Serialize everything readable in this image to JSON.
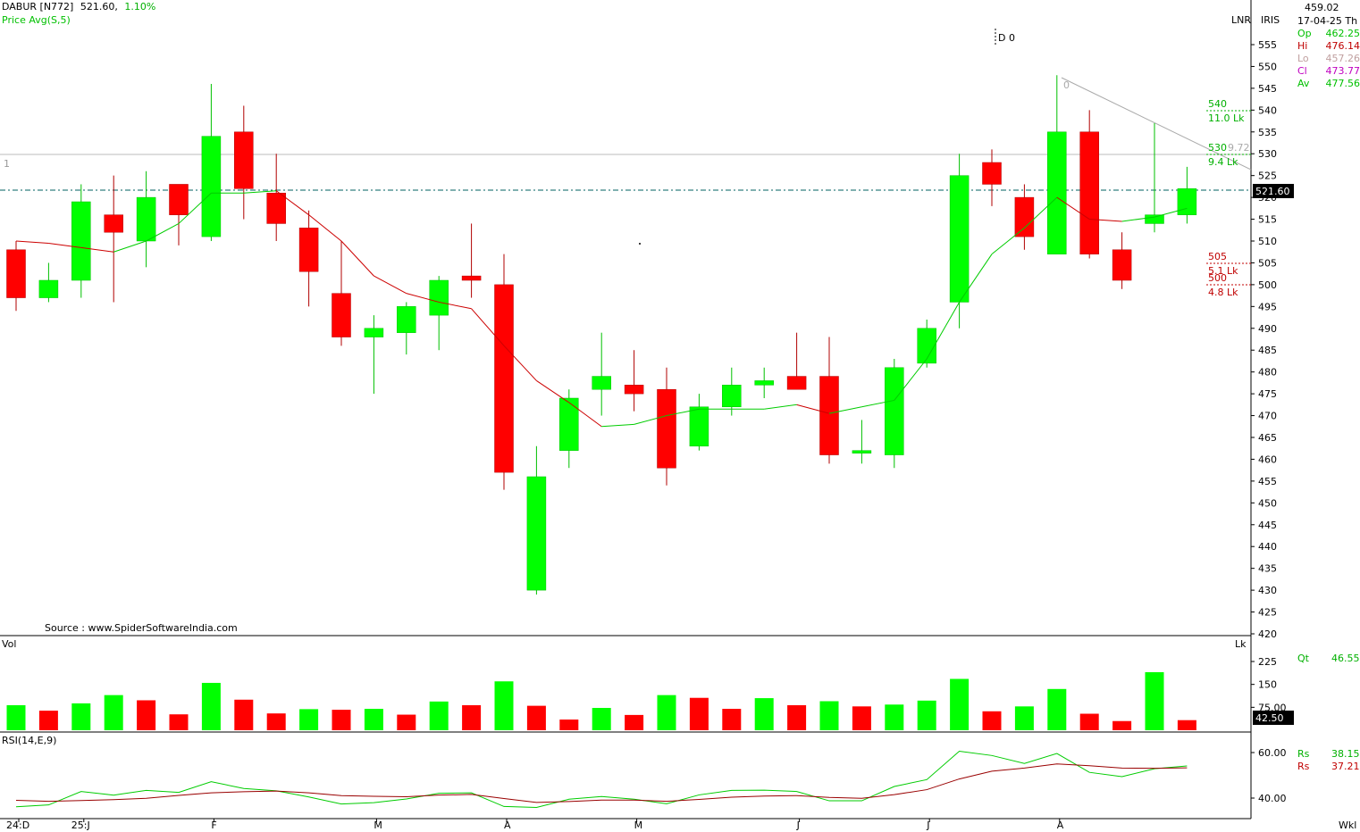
{
  "header": {
    "symbol": "DABUR [N772]",
    "last": "521.60,",
    "change": "1.10%",
    "indicator": "Price  Avg(S,5)"
  },
  "top_right": {
    "lnr": "LNR",
    "iris": "IRIS",
    "value": "459.02",
    "date": "17-04-25 Th",
    "ohlc": [
      {
        "label": "Op",
        "value": "462.25",
        "color": "#00c000"
      },
      {
        "label": "Hi",
        "value": "476.14",
        "color": "#c00000"
      },
      {
        "label": "Lo",
        "value": "457.26",
        "color": "#c0a0a0"
      },
      {
        "label": "Cl",
        "value": "473.77",
        "color": "#c000c0"
      },
      {
        "label": "Av",
        "value": "477.56",
        "color": "#00c000"
      }
    ]
  },
  "annotations": {
    "d0": "D 0",
    "level_1": "1",
    "trend_zero": "0",
    "trend_end": "9.72",
    "r540": "540",
    "r540_vol": "11.0 Lk",
    "r530": "530",
    "r530_vol": "9.4 Lk",
    "s505": "505",
    "s505_vol": "5.1 Lk",
    "s500": "500",
    "s500_vol": "4.8 Lk",
    "source": "Source : www.SpiderSoftwareIndia.com",
    "last_price_tag": "521.60"
  },
  "volume_panel": {
    "label": "Vol",
    "unit": "Lk",
    "qt_label": "Qt",
    "qt_value": "46.55",
    "last_tag": "42.50"
  },
  "rsi_panel": {
    "label": "RSI(14,E,9)",
    "rs1_label": "Rs",
    "rs1_value": "38.15",
    "rs2_label": "Rs",
    "rs2_value": "37.21"
  },
  "footer": {
    "period": "Wkl"
  },
  "colors": {
    "up": "#00ff00",
    "down": "#ff0000",
    "avg_up": "#00cc00",
    "avg_down": "#cc0000"
  },
  "chart_data": {
    "type": "candlestick",
    "price_ylim": [
      420,
      557
    ],
    "price_ticks": [
      420,
      425,
      430,
      435,
      440,
      445,
      450,
      455,
      460,
      465,
      470,
      475,
      480,
      485,
      490,
      495,
      500,
      505,
      510,
      515,
      520,
      525,
      530,
      535,
      540,
      545,
      550,
      555
    ],
    "volume_ylim": [
      0,
      280
    ],
    "volume_ticks": [
      {
        "v": 75,
        "label": "75.00"
      },
      {
        "v": 150,
        "label": "150"
      },
      {
        "v": 225,
        "label": "225"
      }
    ],
    "rsi_ylim": [
      30,
      70
    ],
    "rsi_ticks": [
      {
        "v": 40,
        "label": "40.00"
      },
      {
        "v": 60,
        "label": "60.00"
      }
    ],
    "x_labels": [
      {
        "i": 0,
        "label": "24:D"
      },
      {
        "i": 2,
        "label": "25:J"
      },
      {
        "i": 6,
        "label": "F"
      },
      {
        "i": 11,
        "label": "M"
      },
      {
        "i": 15,
        "label": "A"
      },
      {
        "i": 19,
        "label": "M"
      },
      {
        "i": 24,
        "label": "J"
      },
      {
        "i": 28,
        "label": "J"
      },
      {
        "i": 32,
        "label": "A"
      }
    ],
    "candles": [
      {
        "o": 508,
        "h": 510,
        "l": 494,
        "c": 497
      },
      {
        "o": 497,
        "h": 505,
        "l": 496,
        "c": 501
      },
      {
        "o": 501,
        "h": 523,
        "l": 497,
        "c": 519
      },
      {
        "o": 516,
        "h": 525,
        "l": 496,
        "c": 512
      },
      {
        "o": 510,
        "h": 526,
        "l": 504,
        "c": 520
      },
      {
        "o": 523,
        "h": 522,
        "l": 509,
        "c": 516
      },
      {
        "o": 511,
        "h": 546,
        "l": 510,
        "c": 534
      },
      {
        "o": 535,
        "h": 541,
        "l": 515,
        "c": 522
      },
      {
        "o": 521,
        "h": 530,
        "l": 510,
        "c": 514
      },
      {
        "o": 513,
        "h": 517,
        "l": 495,
        "c": 503
      },
      {
        "o": 498,
        "h": 510,
        "l": 486,
        "c": 488
      },
      {
        "o": 488,
        "h": 493,
        "l": 475,
        "c": 490
      },
      {
        "o": 489,
        "h": 496,
        "l": 484,
        "c": 495
      },
      {
        "o": 493,
        "h": 502,
        "l": 485,
        "c": 501
      },
      {
        "o": 502,
        "h": 514,
        "l": 497,
        "c": 501
      },
      {
        "o": 500,
        "h": 507,
        "l": 453,
        "c": 457
      },
      {
        "o": 430,
        "h": 463,
        "l": 429,
        "c": 456
      },
      {
        "o": 462,
        "h": 476,
        "l": 458,
        "c": 474
      },
      {
        "o": 476,
        "h": 489,
        "l": 470,
        "c": 479
      },
      {
        "o": 477,
        "h": 485,
        "l": 471,
        "c": 475
      },
      {
        "o": 476,
        "h": 481,
        "l": 454,
        "c": 458
      },
      {
        "o": 463,
        "h": 475,
        "l": 462,
        "c": 472
      },
      {
        "o": 472,
        "h": 481,
        "l": 470,
        "c": 477
      },
      {
        "o": 477,
        "h": 481,
        "l": 474,
        "c": 478
      },
      {
        "o": 479,
        "h": 489,
        "l": 476,
        "c": 476
      },
      {
        "o": 479,
        "h": 488,
        "l": 459,
        "c": 461
      },
      {
        "o": 462,
        "h": 469,
        "l": 459,
        "c": 462
      },
      {
        "o": 461,
        "h": 483,
        "l": 458,
        "c": 481
      },
      {
        "o": 482,
        "h": 492,
        "l": 481,
        "c": 490
      },
      {
        "o": 496,
        "h": 530,
        "l": 490,
        "c": 525
      },
      {
        "o": 528,
        "h": 531,
        "l": 518,
        "c": 523
      },
      {
        "o": 520,
        "h": 523,
        "l": 508,
        "c": 511
      },
      {
        "o": 507,
        "h": 548,
        "l": 507,
        "c": 535
      },
      {
        "o": 535,
        "h": 540,
        "l": 506,
        "c": 507
      },
      {
        "o": 508,
        "h": 512,
        "l": 499,
        "c": 501
      },
      {
        "o": 514,
        "h": 537,
        "l": 512,
        "c": 516
      },
      {
        "o": 516,
        "h": 527,
        "l": 514,
        "c": 522
      }
    ],
    "avg": [
      510,
      509.5,
      508.5,
      507.5,
      510,
      514,
      521,
      521,
      521.5,
      516,
      510,
      502,
      498,
      496,
      494.5,
      486,
      478,
      473,
      467.5,
      468,
      470,
      471.5,
      471.5,
      471.5,
      472.5,
      470.5,
      472,
      473.5,
      483,
      496,
      507,
      513,
      520,
      515,
      514.5,
      515.5,
      517.5
    ],
    "volumes": [
      {
        "v": 82,
        "up": true
      },
      {
        "v": 64,
        "up": false
      },
      {
        "v": 88,
        "up": true
      },
      {
        "v": 115,
        "up": true
      },
      {
        "v": 98,
        "up": false
      },
      {
        "v": 52,
        "up": false
      },
      {
        "v": 155,
        "up": true
      },
      {
        "v": 100,
        "up": false
      },
      {
        "v": 55,
        "up": false
      },
      {
        "v": 69,
        "up": true
      },
      {
        "v": 67,
        "up": false
      },
      {
        "v": 70,
        "up": true
      },
      {
        "v": 51,
        "up": false
      },
      {
        "v": 94,
        "up": true
      },
      {
        "v": 82,
        "up": false
      },
      {
        "v": 160,
        "up": true
      },
      {
        "v": 80,
        "up": false
      },
      {
        "v": 35,
        "up": false
      },
      {
        "v": 73,
        "up": true
      },
      {
        "v": 50,
        "up": false
      },
      {
        "v": 115,
        "up": true
      },
      {
        "v": 106,
        "up": false
      },
      {
        "v": 70,
        "up": false
      },
      {
        "v": 105,
        "up": true
      },
      {
        "v": 82,
        "up": false
      },
      {
        "v": 95,
        "up": true
      },
      {
        "v": 78,
        "up": false
      },
      {
        "v": 84,
        "up": true
      },
      {
        "v": 97,
        "up": true
      },
      {
        "v": 168,
        "up": true
      },
      {
        "v": 62,
        "up": false
      },
      {
        "v": 78,
        "up": true
      },
      {
        "v": 135,
        "up": true
      },
      {
        "v": 54,
        "up": false
      },
      {
        "v": 30,
        "up": false
      },
      {
        "v": 190,
        "up": true
      },
      {
        "v": 33,
        "up": false
      }
    ],
    "rsi": [
      36.2,
      37,
      42.9,
      41.3,
      43.4,
      42.5,
      47.2,
      44.2,
      43.2,
      40.5,
      37.4,
      38,
      39.6,
      42.1,
      42.3,
      36.3,
      35.9,
      39.5,
      40.7,
      39.5,
      37.5,
      41.4,
      43.4,
      43.5,
      42.9,
      38.8,
      38.8,
      45.1,
      48.1,
      60.6,
      58.7,
      55.2,
      59.6,
      51.3,
      49.4,
      52.9,
      54.1
    ],
    "rsi_signal": [
      39,
      38.6,
      38.9,
      39.3,
      39.9,
      41.2,
      42.3,
      42.8,
      43.1,
      42.3,
      41.1,
      40.8,
      40.6,
      41.3,
      41.6,
      39.8,
      38.1,
      38.5,
      39.1,
      39.1,
      38.6,
      39.4,
      40.4,
      40.9,
      41.1,
      40.3,
      39.9,
      41.5,
      43.7,
      48.4,
      51.8,
      53.2,
      55,
      54.2,
      53.2,
      53.1,
      53.3
    ]
  }
}
